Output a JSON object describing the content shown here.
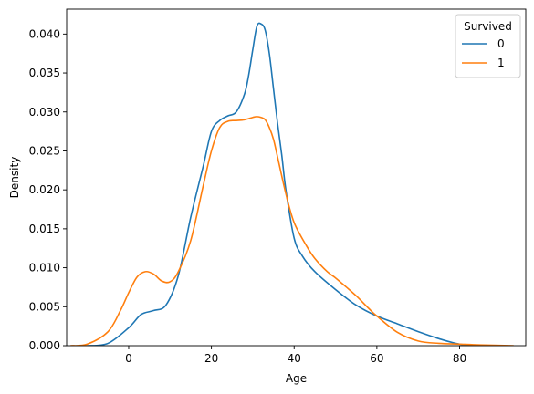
{
  "chart_data": {
    "type": "line",
    "title": "",
    "xlabel": "Age",
    "ylabel": "Density",
    "xlim": [
      -15,
      96
    ],
    "ylim": [
      0,
      0.0432
    ],
    "xticks": [
      0,
      20,
      40,
      60,
      80
    ],
    "xtick_labels": [
      "0",
      "20",
      "40",
      "60",
      "80"
    ],
    "yticks": [
      0,
      0.005,
      0.01,
      0.015,
      0.02,
      0.025,
      0.03,
      0.035,
      0.04
    ],
    "ytick_labels": [
      "0.000",
      "0.005",
      "0.010",
      "0.015",
      "0.020",
      "0.025",
      "0.030",
      "0.035",
      "0.040"
    ],
    "grid": false,
    "legend": {
      "title": "Survived",
      "placement": "top-right"
    },
    "series": [
      {
        "name": "0",
        "color": "#1f77b4",
        "x": [
          -10,
          -5,
          0,
          3,
          6,
          9,
          12,
          15,
          18,
          20,
          22,
          24,
          26,
          28,
          29,
          30,
          31,
          32,
          33,
          34,
          35,
          36,
          37,
          38,
          40,
          42,
          45,
          50,
          55,
          60,
          65,
          70,
          75,
          80,
          85
        ],
        "y": [
          0.0,
          0.0003,
          0.0023,
          0.004,
          0.0045,
          0.0052,
          0.009,
          0.0165,
          0.023,
          0.0275,
          0.0289,
          0.0295,
          0.03,
          0.0323,
          0.0347,
          0.038,
          0.041,
          0.0413,
          0.0405,
          0.0375,
          0.033,
          0.0285,
          0.0245,
          0.02,
          0.0138,
          0.0115,
          0.0095,
          0.0072,
          0.0052,
          0.0038,
          0.0028,
          0.0018,
          0.0009,
          0.0002,
          0.0
        ]
      },
      {
        "name": "1",
        "color": "#ff7f0e",
        "x": [
          -14,
          -10,
          -5,
          -2,
          0,
          2,
          4,
          6,
          8,
          10,
          12,
          15,
          18,
          20,
          22,
          24,
          26,
          28,
          30,
          31,
          32,
          33,
          34,
          35,
          36,
          38,
          40,
          43,
          45,
          48,
          50,
          52,
          55,
          58,
          60,
          65,
          70,
          75,
          80,
          85,
          93
        ],
        "y": [
          0.0,
          0.0002,
          0.0018,
          0.0045,
          0.0068,
          0.0088,
          0.0095,
          0.0092,
          0.0083,
          0.0082,
          0.0095,
          0.0135,
          0.0205,
          0.025,
          0.028,
          0.0288,
          0.0289,
          0.029,
          0.0293,
          0.0294,
          0.0293,
          0.029,
          0.028,
          0.0265,
          0.0242,
          0.0195,
          0.0158,
          0.0128,
          0.0112,
          0.0095,
          0.0087,
          0.0078,
          0.0064,
          0.0048,
          0.0038,
          0.0017,
          0.0006,
          0.0003,
          0.0002,
          0.0001,
          0.0
        ]
      }
    ]
  }
}
